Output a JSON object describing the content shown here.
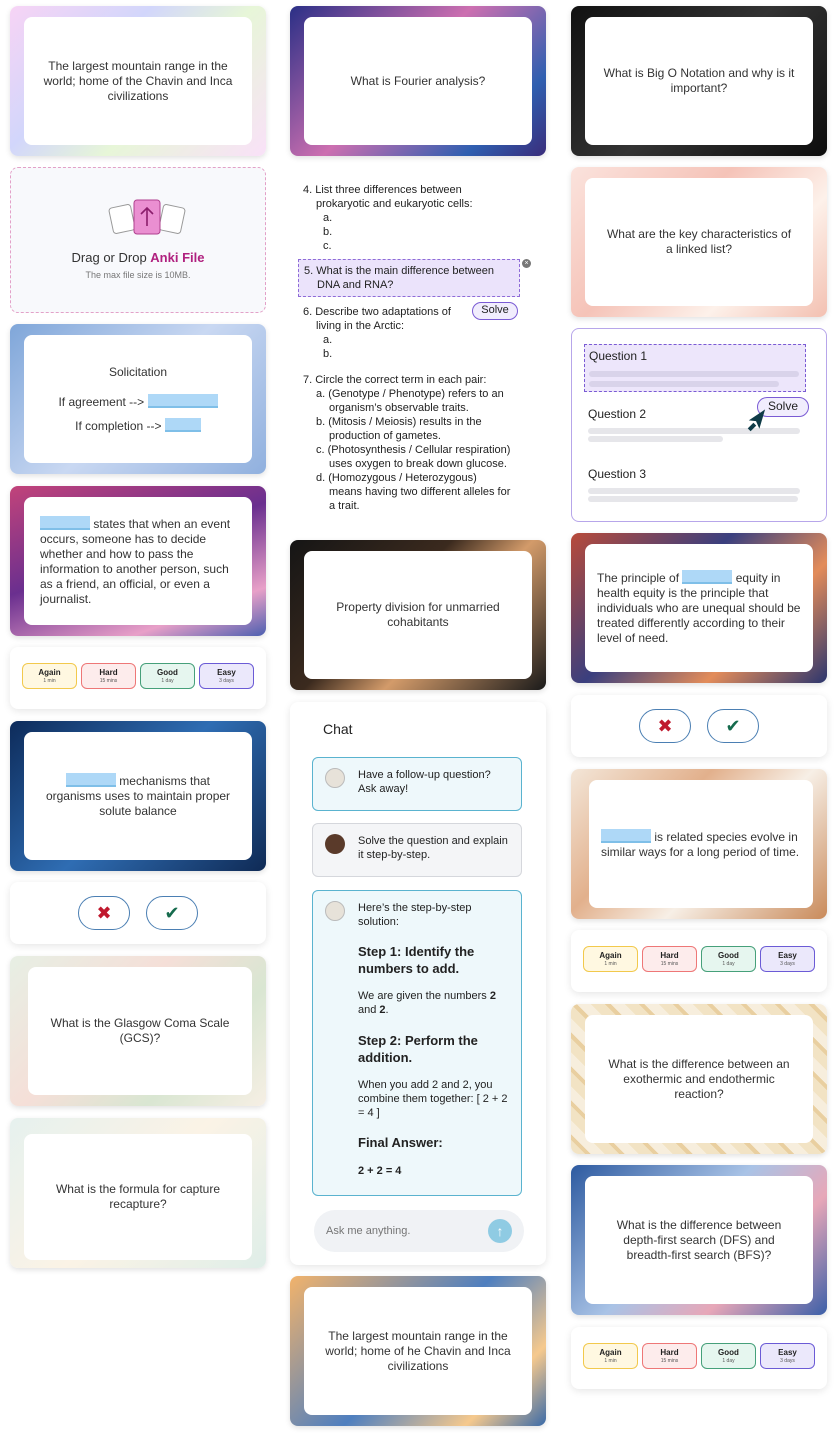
{
  "col1": {
    "card1": "The largest mountain range in the world; home of the Chavin and Inca civilizations",
    "upload": {
      "prefix": "Drag or Drop ",
      "highlight": "Anki File",
      "note": "The max file size is 10MB."
    },
    "solicitation": {
      "title": "Solicitation",
      "line1": "If agreement -->",
      "line2": "If completion -->"
    },
    "card_blank1": " states that when an event occurs, someone has to decide whether and how to pass the information to another person, such as a friend, an official, or even a journalist.",
    "card_blank2": " mechanisms that organisms uses to maintain proper solute balance",
    "card_gcs": "What is the Glasgow Coma Scale (GCS)?",
    "card_capture": "What is the formula for capture recapture?"
  },
  "ratings": [
    {
      "label": "Again",
      "time": "1 min"
    },
    {
      "label": "Hard",
      "time": "15 mins"
    },
    {
      "label": "Good",
      "time": "1 day"
    },
    {
      "label": "Easy",
      "time": "3 days"
    }
  ],
  "icons": {
    "wrong": "✖",
    "right": "✔"
  },
  "col2": {
    "card_fourier": "What is Fourier analysis?",
    "worksheet": {
      "q4": "4. List three differences between",
      "q4b": "prokaryotic and eukaryotic cells:",
      "q4a": "a.",
      "q4bb": "b.",
      "q4c": "c.",
      "q5": "5. What is the main difference between",
      "q5b": "DNA and RNA?",
      "q6a_pre": "6. Describe two adaptations of ",
      "q6a_post": "al",
      "q6b": "living in the Arctic:",
      "q6_a": "a.",
      "q6_b": "b.",
      "solve": "Solve",
      "q7": "7. Circle the correct term in each pair:",
      "q7a": "a. (Genotype / Phenotype) refers to an",
      "q7a2": "organism’s observable traits.",
      "q7b": "b. (Mitosis / Meiosis) results in the",
      "q7b2": "production of gametes.",
      "q7c": "c. (Photosynthesis / Cellular respiration)",
      "q7c2": "uses oxygen to break down glucose.",
      "q7d": "d. (Homozygous / Heterozygous)",
      "q7d2": "means having two different alleles for",
      "q7d3": "a trait."
    },
    "card_property": "Property division for unmarried cohabitants",
    "chat": {
      "title": "Chat",
      "msg1": "Have a follow-up question? Ask away!",
      "msg2": "Solve the question and explain it step-by-step.",
      "msg3_intro": "Here’s the step-by-step solution:",
      "step1_title": "Step 1: Identify the numbers to add.",
      "step1_text_pre": "We are given the numbers ",
      "step1_n1": "2",
      "step1_and": " and ",
      "step1_n2": "2",
      "step1_dot": ".",
      "step2_title": "Step 2: Perform the addition.",
      "step2_text": "When you add 2 and 2, you combine them together: [ 2 + 2 = 4 ]",
      "final_title": "Final Answer:",
      "final_text": "2 + 2 = 4",
      "input_placeholder": "Ask me anything."
    },
    "card_mountain2": "The largest mountain range in the world; home of he Chavin and Inca civilizations"
  },
  "col3": {
    "card_bigO": "What is Big O Notation and why is it important?",
    "card_linked": "What are the key characteristics of a linked list?",
    "quiz": {
      "q1": "Question 1",
      "q2": "Question 2",
      "q3": "Question 3",
      "solve": "Solve"
    },
    "card_equity_pre": "The principle of ",
    "card_equity_post": " equity in health equity is the principle that individuals who are unequal should be treated differently according to their level of need.",
    "card_species": " is related species evolve in similar ways for a long period of time.",
    "card_thermic": "What is the difference between an exothermic and endothermic reaction?",
    "card_dfs": "What is the difference between depth-first search (DFS) and breadth-first search (BFS)?"
  }
}
